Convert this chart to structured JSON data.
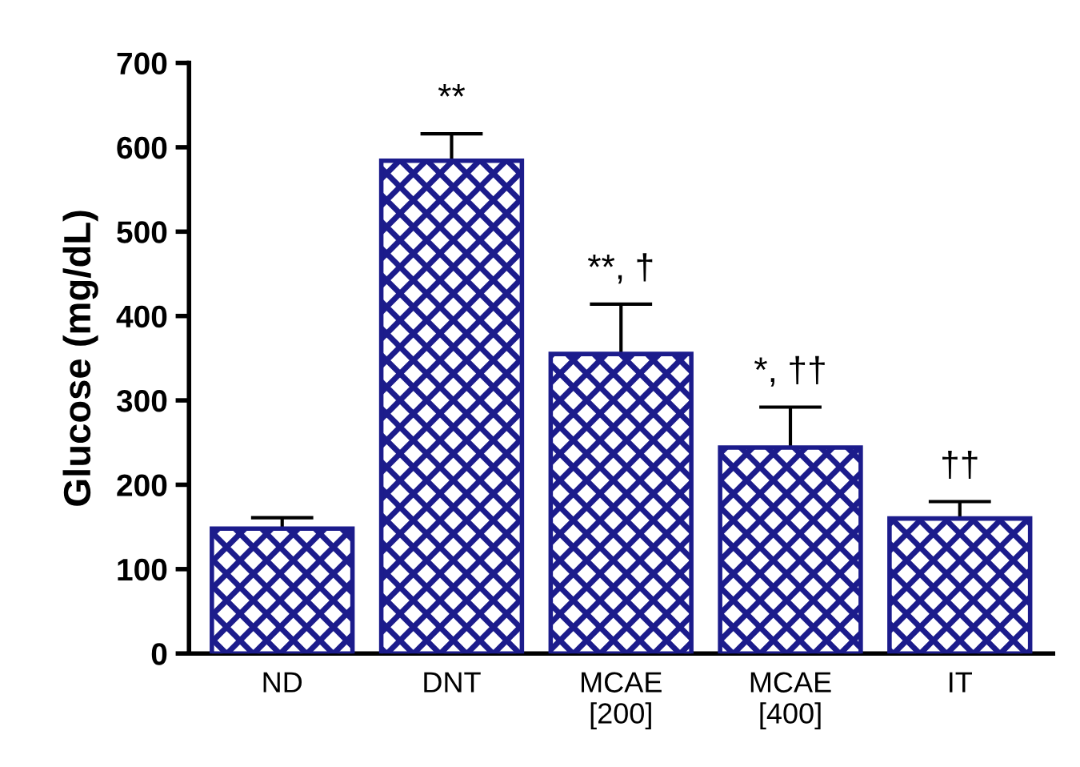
{
  "chart_data": {
    "type": "bar",
    "ylabel": "Glucose (mg/dL)",
    "categories": [
      "ND",
      "DNT",
      "MCAE\n[200]",
      "MCAE\n[400]",
      "IT"
    ],
    "values": [
      148,
      584,
      355,
      244,
      160
    ],
    "errors": [
      13,
      32,
      59,
      48,
      20
    ],
    "color": "#1c1c8c",
    "ylim": [
      0,
      700
    ],
    "yticks": [
      0,
      100,
      200,
      300,
      400,
      500,
      600,
      700
    ],
    "grid": false,
    "annotations": [
      {
        "text": "**",
        "x": "DNT",
        "y": 616
      },
      {
        "text": "**, †",
        "x": "MCAE\n[200]",
        "y": 414
      },
      {
        "text": "*, ††",
        "x": "MCAE\n[400]",
        "y": 292
      },
      {
        "text": "††",
        "x": "IT",
        "y": 180
      }
    ]
  }
}
